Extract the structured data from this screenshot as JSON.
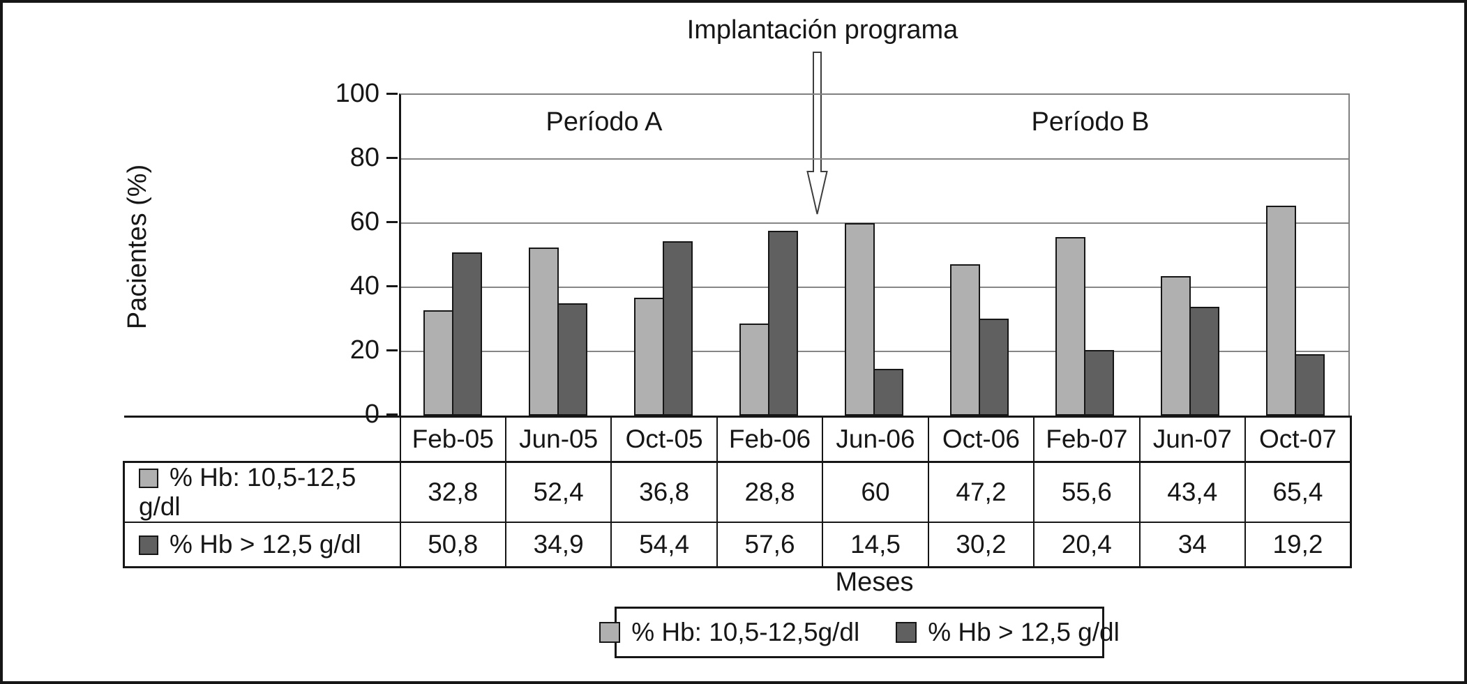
{
  "figure": {
    "annotation": "Implantación programa",
    "period_a": "Período A",
    "period_b": "Período B",
    "y_axis_label": "Pacientes (%)",
    "x_axis_label": "Meses"
  },
  "chart_data": {
    "type": "bar",
    "title": "",
    "xlabel": "Meses",
    "ylabel": "Pacientes (%)",
    "ylim": [
      0,
      100
    ],
    "ytick_step": 20,
    "grid": true,
    "legend_position": "bottom",
    "annotations": [
      "Implantación programa",
      "Período A",
      "Período B"
    ],
    "categories": [
      "Feb-05",
      "Jun-05",
      "Oct-05",
      "Feb-06",
      "Jun-06",
      "Oct-06",
      "Feb-07",
      "Jun-07",
      "Oct-07"
    ],
    "series": [
      {
        "name": "% Hb: 10,5-12,5 g/dl",
        "legend_name": "% Hb: 10,5-12,5g/dl",
        "color": "#b0b0b0",
        "values": [
          32.8,
          52.4,
          36.8,
          28.8,
          60,
          47.2,
          55.6,
          43.4,
          65.4
        ]
      },
      {
        "name": "% Hb > 12,5 g/dl",
        "legend_name": "% Hb > 12,5 g/dl",
        "color": "#606060",
        "values": [
          50.8,
          34.9,
          54.4,
          57.6,
          14.5,
          30.2,
          20.4,
          34,
          19.2
        ]
      }
    ]
  },
  "colors": {
    "ink": "#161616",
    "grid": "#868686",
    "bar_light": "#b0b0b0",
    "bar_dark": "#606060",
    "background": "#ffffff"
  }
}
